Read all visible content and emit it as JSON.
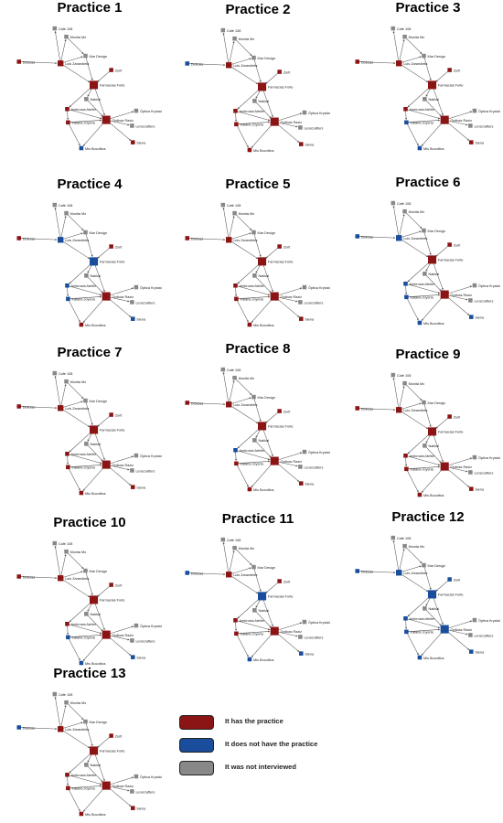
{
  "colors": {
    "has": "#8b1414",
    "not_have": "#1a4d9c",
    "not_interviewed": "#888888",
    "edge": "#555555"
  },
  "nodes": [
    {
      "id": "cafe",
      "label": "Café 108"
    },
    {
      "id": "monita",
      "label": "Monita Mx"
    },
    {
      "id": "mar",
      "label": "Mar Design"
    },
    {
      "id": "delicias",
      "label": "Delicias"
    },
    {
      "id": "luis",
      "label": "Luis Zarandieta"
    },
    {
      "id": "zurit",
      "label": "Zurit"
    },
    {
      "id": "farmacias",
      "label": "Farmacias Forte"
    },
    {
      "id": "nakkal",
      "label": "Nakkal"
    },
    {
      "id": "ambrosia",
      "label": "Ambrosia Atelier"
    },
    {
      "id": "kataria",
      "label": "Kataria Joyeria"
    },
    {
      "id": "opticas",
      "label": "Opticas Raziz"
    },
    {
      "id": "optica",
      "label": "Óptica Krystal"
    },
    {
      "id": "lens",
      "label": "Lenscrafters"
    },
    {
      "id": "siena",
      "label": "Siena"
    },
    {
      "id": "mis",
      "label": "Mis Bocotitos"
    }
  ],
  "practices": [
    {
      "title": "Practice 1",
      "status": {
        "cafe": "n",
        "monita": "n",
        "mar": "n",
        "delicias": "h",
        "luis": "h",
        "zurit": "h",
        "farmacias": "h",
        "nakkal": "n",
        "ambrosia": "h",
        "kataria": "h",
        "opticas": "h",
        "optica": "n",
        "lens": "n",
        "siena": "h",
        "mis": "b"
      }
    },
    {
      "title": "Practice 2",
      "status": {
        "cafe": "n",
        "monita": "n",
        "mar": "n",
        "delicias": "b",
        "luis": "h",
        "zurit": "h",
        "farmacias": "h",
        "nakkal": "n",
        "ambrosia": "h",
        "kataria": "h",
        "opticas": "h",
        "optica": "n",
        "lens": "n",
        "siena": "h",
        "mis": "h"
      }
    },
    {
      "title": "Practice 3",
      "status": {
        "cafe": "n",
        "monita": "n",
        "mar": "n",
        "delicias": "h",
        "luis": "h",
        "zurit": "h",
        "farmacias": "h",
        "nakkal": "n",
        "ambrosia": "h",
        "kataria": "b",
        "opticas": "h",
        "optica": "n",
        "lens": "n",
        "siena": "h",
        "mis": "b"
      }
    },
    {
      "title": "Practice 4",
      "status": {
        "cafe": "n",
        "monita": "n",
        "mar": "n",
        "delicias": "h",
        "luis": "b",
        "zurit": "h",
        "farmacias": "b",
        "nakkal": "n",
        "ambrosia": "b",
        "kataria": "b",
        "opticas": "h",
        "optica": "n",
        "lens": "n",
        "siena": "b",
        "mis": "h"
      }
    },
    {
      "title": "Practice 5",
      "status": {
        "cafe": "n",
        "monita": "n",
        "mar": "n",
        "delicias": "h",
        "luis": "h",
        "zurit": "h",
        "farmacias": "h",
        "nakkal": "n",
        "ambrosia": "h",
        "kataria": "h",
        "opticas": "h",
        "optica": "n",
        "lens": "n",
        "siena": "h",
        "mis": "h"
      }
    },
    {
      "title": "Practice 6",
      "status": {
        "cafe": "n",
        "monita": "n",
        "mar": "n",
        "delicias": "b",
        "luis": "b",
        "zurit": "h",
        "farmacias": "h",
        "nakkal": "n",
        "ambrosia": "b",
        "kataria": "b",
        "opticas": "h",
        "optica": "n",
        "lens": "n",
        "siena": "b",
        "mis": "b"
      }
    },
    {
      "title": "Practice 7",
      "status": {
        "cafe": "n",
        "monita": "n",
        "mar": "n",
        "delicias": "h",
        "luis": "h",
        "zurit": "h",
        "farmacias": "h",
        "nakkal": "n",
        "ambrosia": "h",
        "kataria": "h",
        "opticas": "h",
        "optica": "n",
        "lens": "n",
        "siena": "h",
        "mis": "h"
      }
    },
    {
      "title": "Practice 8",
      "status": {
        "cafe": "n",
        "monita": "n",
        "mar": "n",
        "delicias": "h",
        "luis": "h",
        "zurit": "h",
        "farmacias": "h",
        "nakkal": "n",
        "ambrosia": "b",
        "kataria": "h",
        "opticas": "h",
        "optica": "n",
        "lens": "n",
        "siena": "h",
        "mis": "h"
      }
    },
    {
      "title": "Practice 9",
      "status": {
        "cafe": "n",
        "monita": "n",
        "mar": "n",
        "delicias": "h",
        "luis": "h",
        "zurit": "h",
        "farmacias": "h",
        "nakkal": "n",
        "ambrosia": "h",
        "kataria": "h",
        "opticas": "h",
        "optica": "n",
        "lens": "n",
        "siena": "h",
        "mis": "h"
      }
    },
    {
      "title": "Practice 10",
      "status": {
        "cafe": "n",
        "monita": "n",
        "mar": "n",
        "delicias": "h",
        "luis": "h",
        "zurit": "h",
        "farmacias": "h",
        "nakkal": "n",
        "ambrosia": "h",
        "kataria": "b",
        "opticas": "h",
        "optica": "n",
        "lens": "n",
        "siena": "b",
        "mis": "b"
      }
    },
    {
      "title": "Practice 11",
      "status": {
        "cafe": "n",
        "monita": "n",
        "mar": "n",
        "delicias": "b",
        "luis": "h",
        "zurit": "h",
        "farmacias": "b",
        "nakkal": "n",
        "ambrosia": "h",
        "kataria": "h",
        "opticas": "h",
        "optica": "n",
        "lens": "n",
        "siena": "b",
        "mis": "b"
      }
    },
    {
      "title": "Practice 12",
      "status": {
        "cafe": "n",
        "monita": "n",
        "mar": "n",
        "delicias": "b",
        "luis": "b",
        "zurit": "b",
        "farmacias": "b",
        "nakkal": "n",
        "ambrosia": "b",
        "kataria": "b",
        "opticas": "b",
        "optica": "n",
        "lens": "n",
        "siena": "b",
        "mis": "b"
      }
    },
    {
      "title": "Practice 13",
      "status": {
        "cafe": "n",
        "monita": "n",
        "mar": "n",
        "delicias": "b",
        "luis": "h",
        "zurit": "h",
        "farmacias": "h",
        "nakkal": "n",
        "ambrosia": "h",
        "kataria": "h",
        "opticas": "h",
        "optica": "n",
        "lens": "n",
        "siena": "h",
        "mis": "h"
      }
    }
  ],
  "legend": [
    {
      "key": "h",
      "label": "It has the practice"
    },
    {
      "key": "b",
      "label": "It does not have the practice"
    },
    {
      "key": "n",
      "label": "It was not interviewed"
    }
  ]
}
